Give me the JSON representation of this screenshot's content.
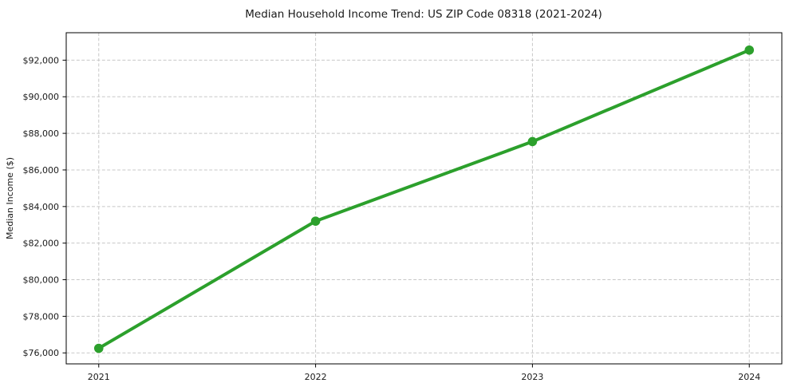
{
  "chart_data": {
    "type": "line",
    "title": "Median Household Income Trend: US ZIP Code 08318 (2021-2024)",
    "xlabel": "",
    "ylabel": "Median Income ($)",
    "x": [
      2021,
      2022,
      2023,
      2024
    ],
    "values": [
      76250,
      83200,
      87550,
      92550
    ],
    "xticks": [
      2021,
      2022,
      2023,
      2024
    ],
    "xtick_labels": [
      "2021",
      "2022",
      "2023",
      "2024"
    ],
    "yticks": [
      76000,
      78000,
      80000,
      82000,
      84000,
      86000,
      88000,
      90000,
      92000
    ],
    "ytick_labels": [
      "$76,000",
      "$78,000",
      "$80,000",
      "$82,000",
      "$84,000",
      "$86,000",
      "$88,000",
      "$90,000",
      "$92,000"
    ],
    "xlim": [
      2020.85,
      2024.15
    ],
    "ylim": [
      75400,
      93500
    ],
    "grid": true,
    "grid_style": "dashed",
    "legend": "none",
    "line_color": "#2ca02c",
    "marker": "circle",
    "marker_color": "#2ca02c",
    "grid_color": "#c8c8c8",
    "axis_color": "#000000",
    "text_color": "#1a1a1a",
    "background_color": "#ffffff"
  }
}
